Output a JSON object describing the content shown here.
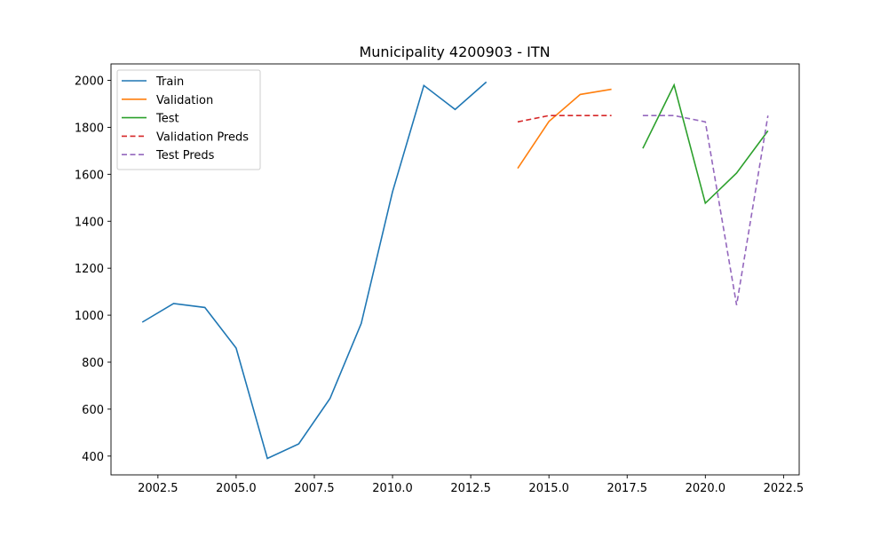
{
  "chart_data": {
    "type": "line",
    "title": "Municipality 4200903 - ITN",
    "xlabel": "",
    "ylabel": "",
    "xlim": [
      2001.0,
      2023.0
    ],
    "ylim": [
      320,
      2070
    ],
    "x_ticks": [
      2002.5,
      2005.0,
      2007.5,
      2010.0,
      2012.5,
      2015.0,
      2017.5,
      2020.0,
      2022.5
    ],
    "x_tick_labels": [
      "2002.5",
      "2005.0",
      "2007.5",
      "2010.0",
      "2012.5",
      "2015.0",
      "2017.5",
      "2020.0",
      "2022.5"
    ],
    "y_ticks": [
      400,
      600,
      800,
      1000,
      1200,
      1400,
      1600,
      1800,
      2000
    ],
    "y_tick_labels": [
      "400",
      "600",
      "800",
      "1000",
      "1200",
      "1400",
      "1600",
      "1800",
      "2000"
    ],
    "grid": false,
    "legend_position": "top-left",
    "series": [
      {
        "name": "Train",
        "color": "#1f77b4",
        "dash": "solid",
        "x": [
          2002,
          2003,
          2004,
          2005,
          2006,
          2007,
          2008,
          2009,
          2010,
          2011,
          2012,
          2013
        ],
        "y": [
          970,
          1050,
          1033,
          860,
          390,
          452,
          645,
          965,
          1525,
          1978,
          1876,
          1993
        ]
      },
      {
        "name": "Validation",
        "color": "#ff7f0e",
        "dash": "solid",
        "x": [
          2014,
          2015,
          2016,
          2017
        ],
        "y": [
          1625,
          1825,
          1940,
          1962
        ]
      },
      {
        "name": "Test",
        "color": "#2ca02c",
        "dash": "solid",
        "x": [
          2018,
          2019,
          2020,
          2021,
          2022
        ],
        "y": [
          1710,
          1980,
          1477,
          1605,
          1785
        ]
      },
      {
        "name": "Validation Preds",
        "color": "#d62728",
        "dash": "dashed",
        "x": [
          2014,
          2015,
          2016,
          2017
        ],
        "y": [
          1823,
          1850,
          1850,
          1850
        ]
      },
      {
        "name": "Test Preds",
        "color": "#9467bd",
        "dash": "dashed",
        "x": [
          2018,
          2019,
          2020,
          2021,
          2022
        ],
        "y": [
          1850,
          1850,
          1823,
          1043,
          1850
        ]
      }
    ]
  }
}
